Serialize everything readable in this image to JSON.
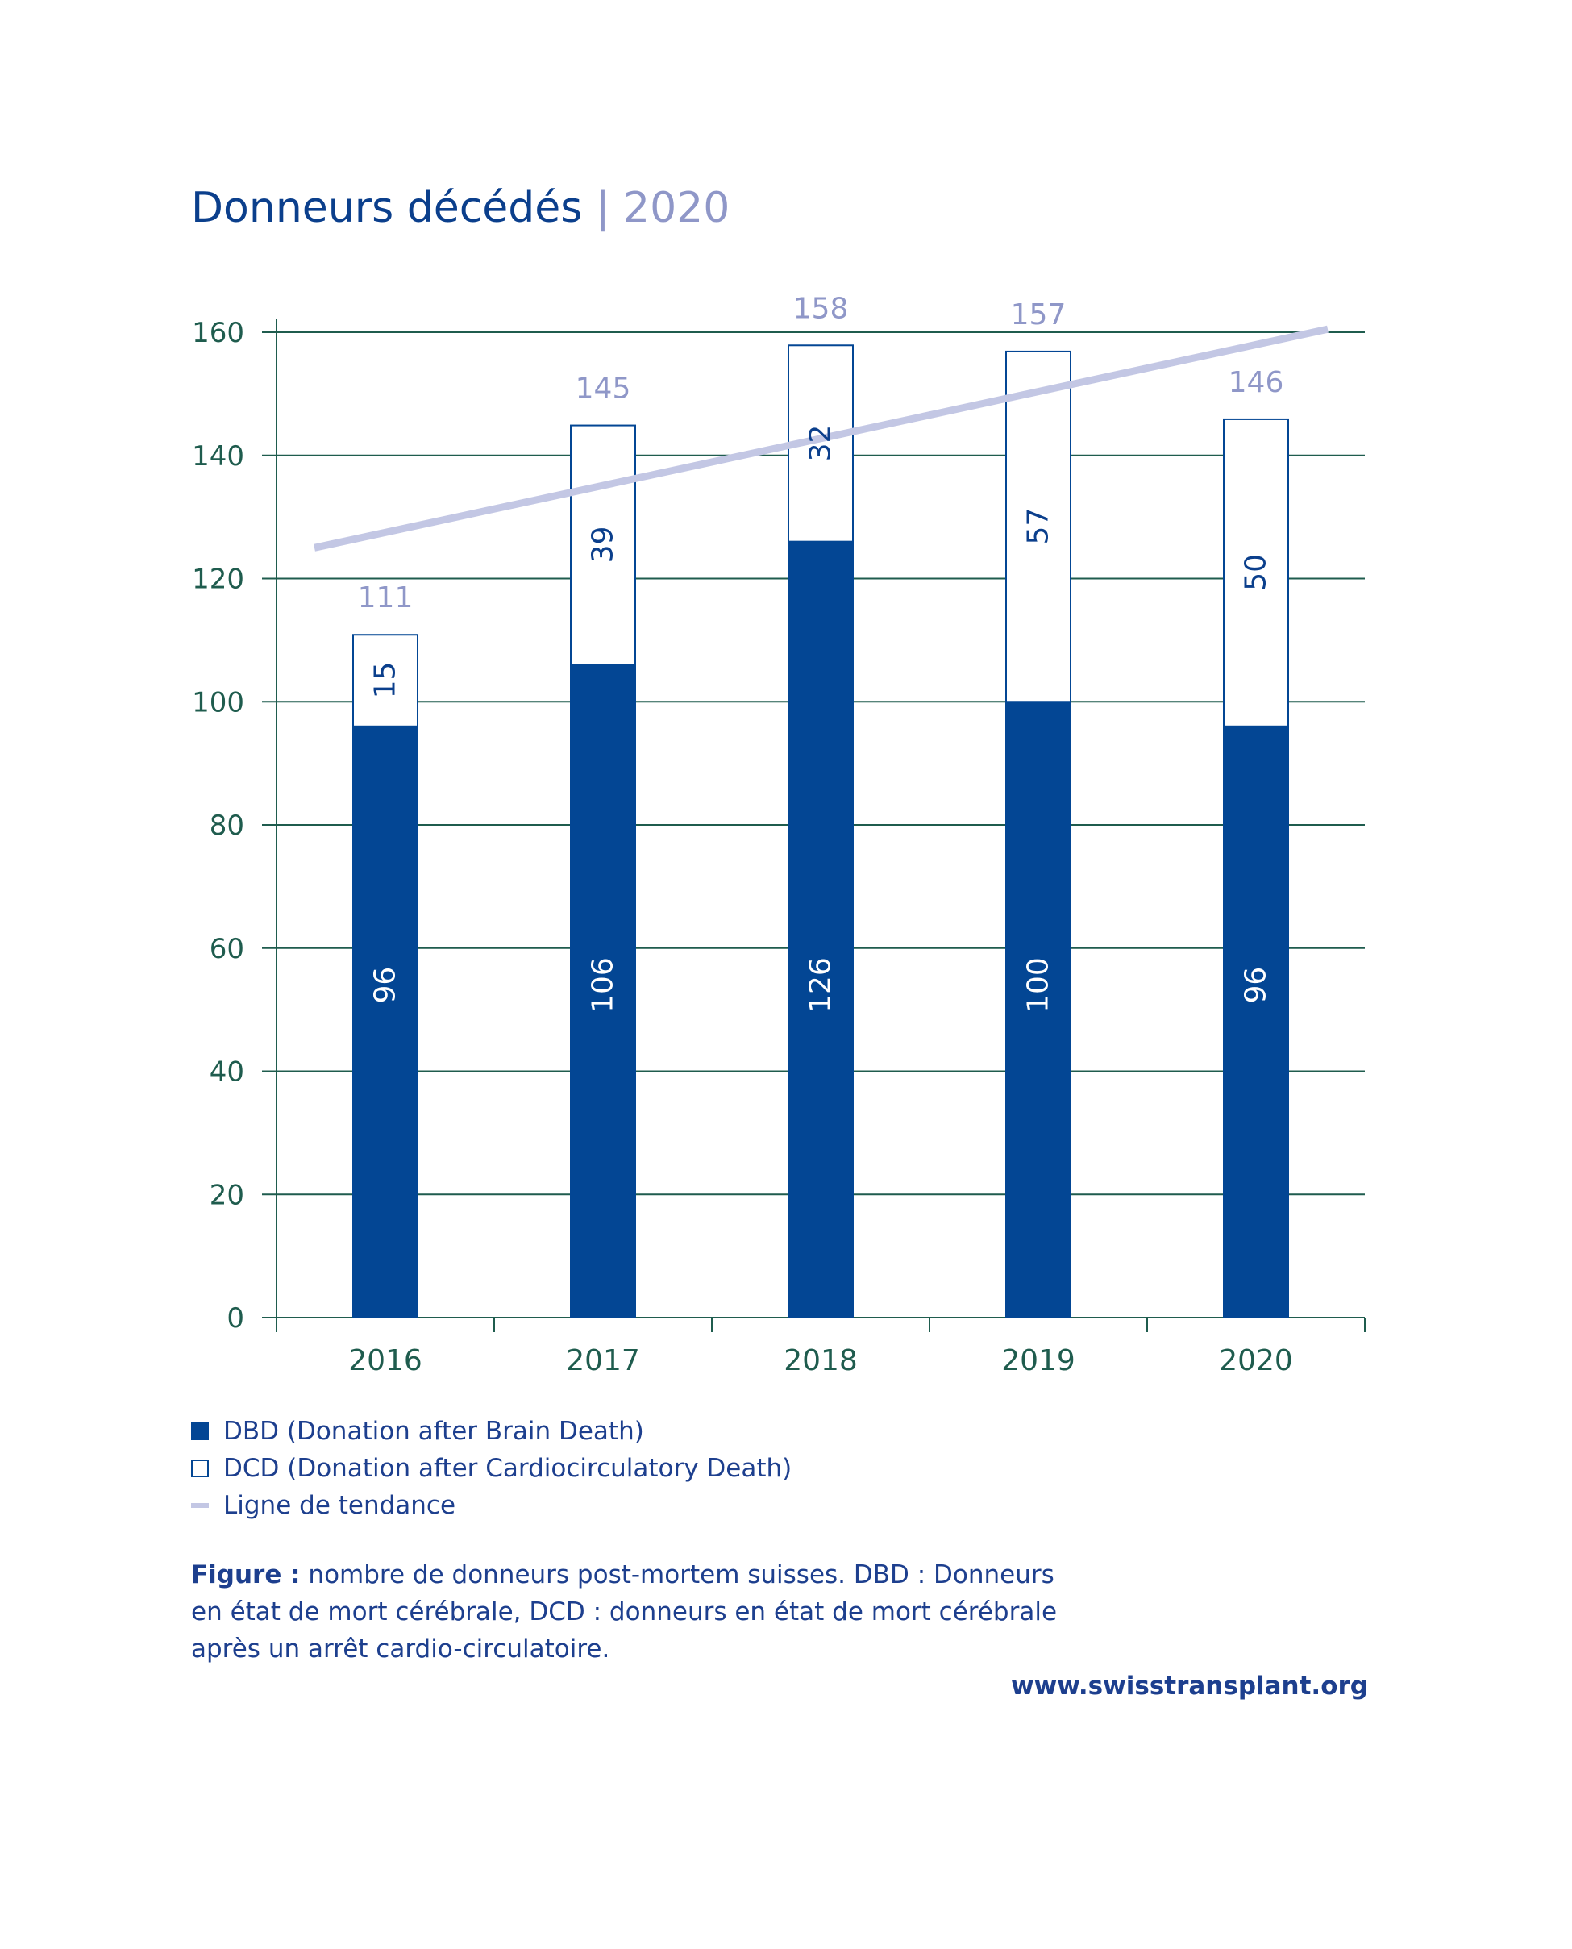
{
  "title": {
    "main": "Donneurs décédés",
    "separator": "|",
    "year": "2020"
  },
  "chart_data": {
    "type": "bar",
    "stacked": true,
    "categories": [
      "2016",
      "2017",
      "2018",
      "2019",
      "2020"
    ],
    "series": [
      {
        "name": "DBD (Donation after Brain Death)",
        "values": [
          96,
          106,
          126,
          100,
          96
        ],
        "color": "#034694"
      },
      {
        "name": "DCD (Donation after Cardiocirculatory Death)",
        "values": [
          15,
          39,
          32,
          57,
          50
        ],
        "color": "#ffffff"
      }
    ],
    "totals": [
      111,
      145,
      158,
      157,
      146
    ],
    "trendline": {
      "name": "Ligne de tendance",
      "start": 125,
      "end": 160.5,
      "color": "#c3c7e4"
    },
    "yticks": [
      0,
      20,
      40,
      60,
      80,
      100,
      120,
      140,
      160
    ],
    "ylim": [
      0,
      160
    ],
    "grid": true,
    "legend_position": "bottom-left",
    "colors": {
      "axis": "#1f5c4e",
      "label": "#0b3f8c",
      "total_label": "#8f97c8"
    }
  },
  "legend": [
    {
      "swatch": "dbd",
      "label": "DBD (Donation after Brain Death)"
    },
    {
      "swatch": "dcd",
      "label": "DCD (Donation after Cardiocirculatory Death)"
    },
    {
      "swatch": "trend",
      "label": "Ligne de tendance"
    }
  ],
  "caption": {
    "lead": "Figure :",
    "text": " nombre de donneurs post-mortem suisses. DBD : Donneurs en état de mort cérébrale, DCD : donneurs en état de mort cérébrale après un arrêt cardio-circulatoire."
  },
  "website": "www.swisstransplant.org"
}
